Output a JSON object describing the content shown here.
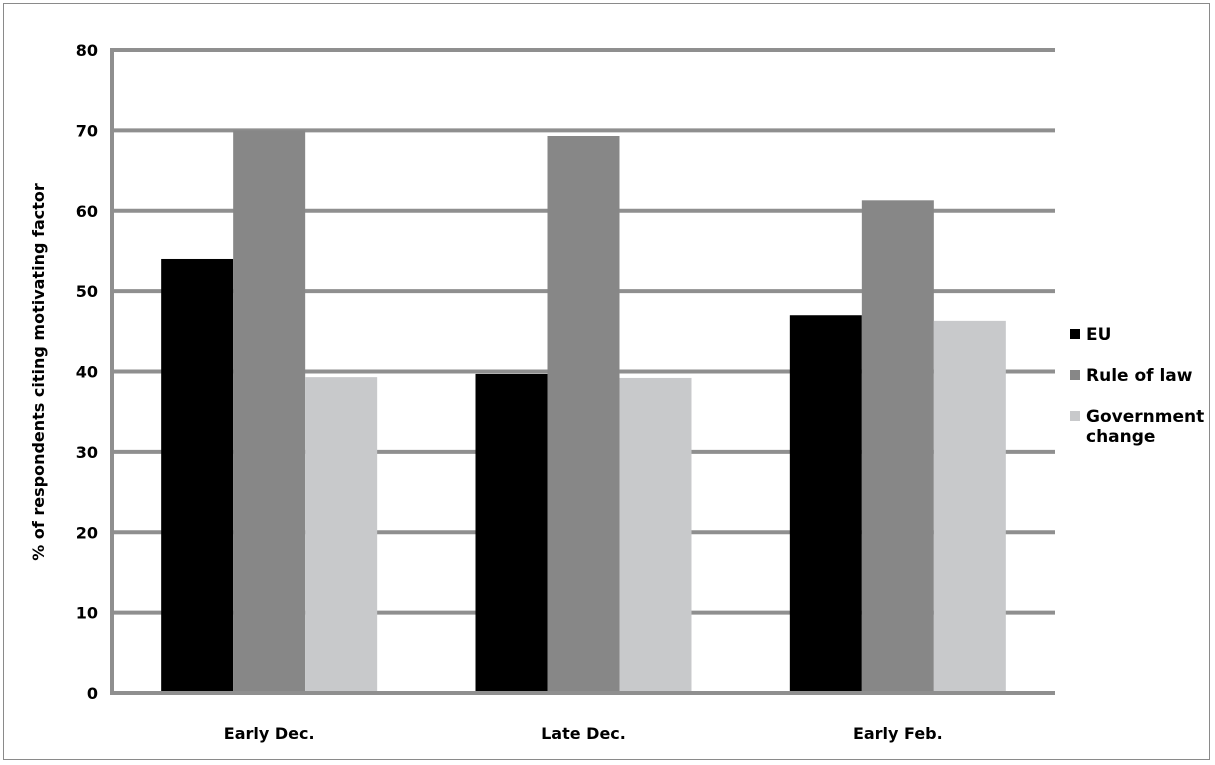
{
  "chart_data": {
    "type": "bar",
    "title": "",
    "xlabel": "",
    "ylabel": "% of respondents citing motivating factor",
    "categories": [
      "Early Dec.",
      "Late Dec.",
      "Early Feb."
    ],
    "ylim": [
      0,
      80
    ],
    "yticks": [
      "0",
      "10",
      "20",
      "30",
      "40",
      "50",
      "60",
      "70",
      "80"
    ],
    "grid": true,
    "legend_position": "right",
    "series": [
      {
        "name": "EU",
        "color": "#000000",
        "values": [
          54,
          39.7,
          47
        ]
      },
      {
        "name": "Rule of law",
        "color": "#878787",
        "values": [
          70,
          69.3,
          61.3
        ]
      },
      {
        "name": "Government change",
        "name_lines": [
          "Government",
          "change"
        ],
        "color": "#c8c9cb",
        "values": [
          39.3,
          39.2,
          46.3
        ]
      }
    ]
  }
}
